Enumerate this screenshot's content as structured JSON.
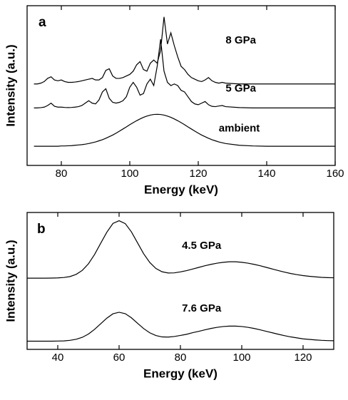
{
  "chart_data": [
    {
      "type": "line",
      "panel_label": "a",
      "x_label": "Energy (keV)",
      "y_label": "Intensity (a.u.)",
      "xlim": [
        70,
        160
      ],
      "xticks": [
        80,
        100,
        120,
        140,
        160
      ],
      "ylim": [
        0,
        10
      ],
      "x": [
        72,
        73,
        74,
        75,
        76,
        77,
        78,
        79,
        80,
        81,
        82,
        83,
        84,
        85,
        86,
        87,
        88,
        89,
        90,
        91,
        92,
        93,
        94,
        95,
        96,
        97,
        98,
        99,
        100,
        101,
        102,
        103,
        104,
        105,
        106,
        107,
        108,
        109,
        110,
        111,
        112,
        113,
        114,
        115,
        116,
        117,
        118,
        119,
        120,
        121,
        122,
        123,
        124,
        125,
        126,
        127,
        128,
        132,
        136,
        140,
        144,
        148,
        152,
        156,
        160
      ],
      "series": [
        {
          "name": "8 GPa",
          "color": "#000000",
          "values": [
            5.1,
            5.1,
            5.15,
            5.25,
            5.45,
            5.55,
            5.35,
            5.3,
            5.35,
            5.25,
            5.2,
            5.2,
            5.22,
            5.25,
            5.3,
            5.35,
            5.4,
            5.45,
            5.35,
            5.35,
            5.5,
            5.95,
            6.05,
            5.6,
            5.45,
            5.45,
            5.5,
            5.6,
            5.7,
            5.9,
            6.3,
            6.5,
            6.0,
            5.9,
            6.4,
            6.6,
            6.4,
            7.2,
            9.3,
            7.6,
            8.3,
            7.5,
            6.8,
            6.2,
            6.0,
            5.7,
            5.5,
            5.4,
            5.3,
            5.25,
            5.35,
            5.5,
            5.3,
            5.2,
            5.15,
            5.2,
            5.15,
            5.1,
            5.1,
            5.1,
            5.1,
            5.1,
            5.1,
            5.1,
            5.1
          ]
        },
        {
          "name": "5 GPa",
          "color": "#000000",
          "values": [
            3.6,
            3.6,
            3.62,
            3.65,
            3.75,
            3.9,
            3.7,
            3.65,
            3.65,
            3.63,
            3.62,
            3.63,
            3.65,
            3.68,
            3.75,
            3.9,
            4.05,
            3.9,
            3.85,
            4.1,
            4.6,
            4.8,
            4.2,
            3.95,
            3.9,
            3.95,
            4.05,
            4.3,
            4.9,
            5.2,
            4.9,
            4.4,
            4.5,
            5.1,
            5.4,
            5.0,
            6.2,
            7.9,
            5.9,
            5.2,
            5.0,
            5.1,
            5.0,
            4.7,
            4.6,
            4.3,
            4.0,
            3.85,
            3.8,
            3.9,
            4.0,
            3.8,
            3.7,
            3.68,
            3.72,
            3.75,
            3.68,
            3.62,
            3.6,
            3.6,
            3.6,
            3.6,
            3.6,
            3.6,
            3.6
          ]
        },
        {
          "name": "ambient",
          "color": "#000000",
          "values": [
            1.2,
            1.2,
            1.2,
            1.2,
            1.2,
            1.2,
            1.2,
            1.2,
            1.22,
            1.22,
            1.23,
            1.24,
            1.26,
            1.28,
            1.3,
            1.33,
            1.37,
            1.42,
            1.47,
            1.54,
            1.61,
            1.7,
            1.8,
            1.9,
            2.02,
            2.15,
            2.28,
            2.41,
            2.55,
            2.68,
            2.8,
            2.91,
            3.01,
            3.09,
            3.15,
            3.19,
            3.2,
            3.19,
            3.15,
            3.09,
            3.01,
            2.91,
            2.8,
            2.68,
            2.55,
            2.41,
            2.28,
            2.15,
            2.02,
            1.9,
            1.8,
            1.7,
            1.61,
            1.54,
            1.47,
            1.42,
            1.37,
            1.26,
            1.22,
            1.2,
            1.2,
            1.2,
            1.2,
            1.2,
            1.2
          ]
        }
      ]
    },
    {
      "type": "line",
      "panel_label": "b",
      "x_label": "Energy (keV)",
      "y_label": "Intensity (a.u.)",
      "xlim": [
        30,
        130
      ],
      "xticks": [
        40,
        60,
        80,
        100,
        120
      ],
      "ylim": [
        0,
        10
      ],
      "x": [
        30,
        32,
        34,
        36,
        38,
        40,
        42,
        44,
        46,
        48,
        50,
        52,
        54,
        56,
        58,
        60,
        62,
        64,
        66,
        68,
        70,
        72,
        74,
        76,
        78,
        80,
        82,
        84,
        86,
        88,
        90,
        92,
        94,
        96,
        98,
        100,
        102,
        104,
        106,
        108,
        110,
        112,
        114,
        116,
        118,
        120,
        122,
        124,
        126,
        128,
        130
      ],
      "series": [
        {
          "name": "4.5 GPa",
          "color": "#000000",
          "values": [
            5.2,
            5.2,
            5.2,
            5.2,
            5.21,
            5.22,
            5.25,
            5.32,
            5.48,
            5.77,
            6.25,
            6.93,
            7.75,
            8.56,
            9.2,
            9.4,
            9.19,
            8.59,
            7.79,
            6.99,
            6.35,
            5.91,
            5.67,
            5.58,
            5.59,
            5.66,
            5.75,
            5.87,
            5.99,
            6.11,
            6.21,
            6.3,
            6.36,
            6.4,
            6.4,
            6.36,
            6.3,
            6.21,
            6.11,
            5.99,
            5.87,
            5.75,
            5.64,
            5.54,
            5.46,
            5.39,
            5.34,
            5.3,
            5.26,
            5.24,
            5.23
          ]
        },
        {
          "name": "7.6 GPa",
          "color": "#000000",
          "values": [
            0.6,
            0.6,
            0.6,
            0.6,
            0.6,
            0.61,
            0.62,
            0.66,
            0.74,
            0.88,
            1.12,
            1.46,
            1.87,
            2.28,
            2.6,
            2.71,
            2.61,
            2.31,
            1.91,
            1.52,
            1.21,
            1.01,
            0.91,
            0.9,
            0.94,
            1.02,
            1.1,
            1.22,
            1.32,
            1.43,
            1.53,
            1.61,
            1.67,
            1.7,
            1.7,
            1.67,
            1.61,
            1.53,
            1.43,
            1.32,
            1.21,
            1.1,
            1.0,
            0.91,
            0.84,
            0.77,
            0.73,
            0.69,
            0.66,
            0.64,
            0.63
          ]
        }
      ]
    }
  ]
}
